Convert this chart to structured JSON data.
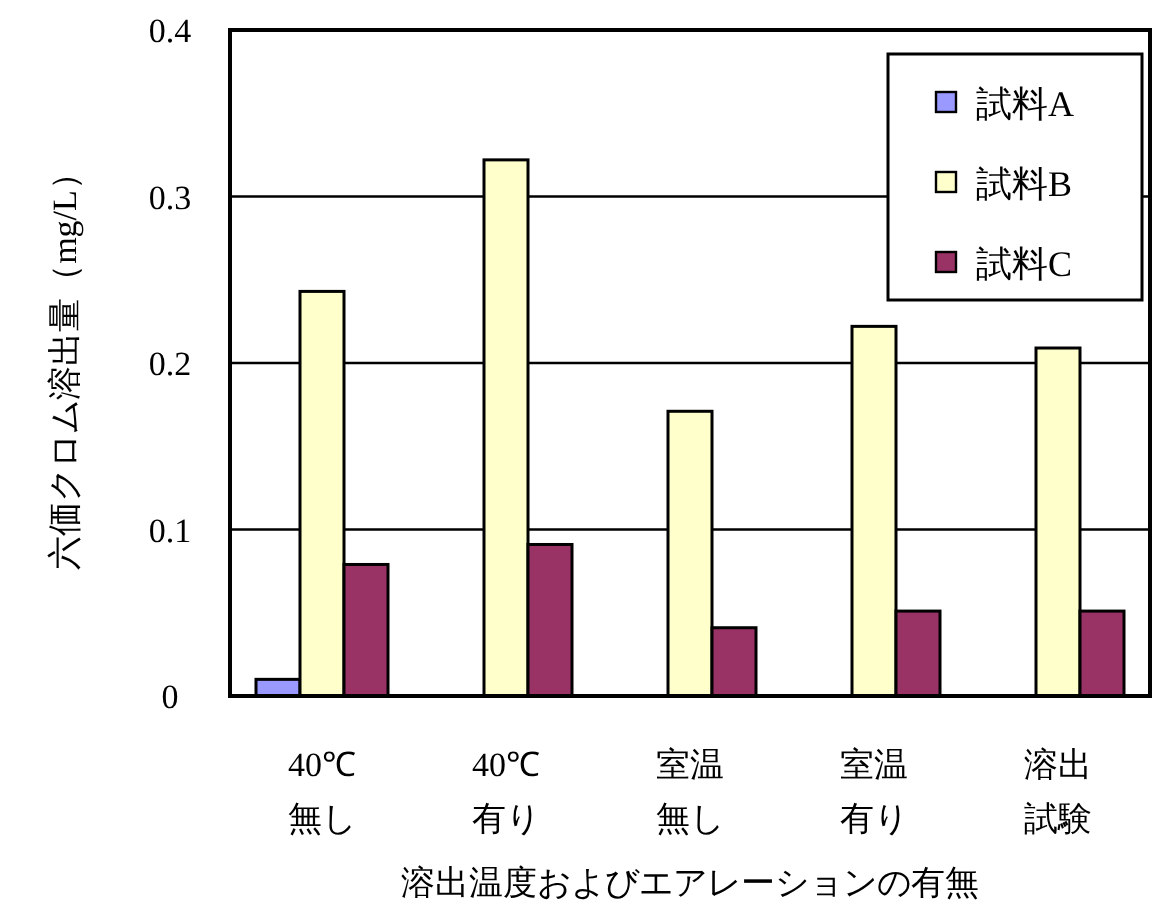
{
  "chart_data": {
    "type": "bar",
    "xlabel": "溶出温度およびエアレーションの有無",
    "ylabel": "六価クロム溶出量（mg/L）",
    "categories": [
      "40℃無し",
      "40℃有り",
      "室温無し",
      "室温有り",
      "溶出試験"
    ],
    "series": [
      {
        "name": "試料A",
        "color": "#9999ff",
        "values": [
          0.01,
          0,
          0,
          0,
          0
        ]
      },
      {
        "name": "試料B",
        "color": "#ffffcc",
        "values": [
          0.243,
          0.322,
          0.171,
          0.222,
          0.209
        ]
      },
      {
        "name": "試料C",
        "color": "#993366",
        "values": [
          0.079,
          0.091,
          0.041,
          0.051,
          0.051
        ]
      }
    ],
    "ylim": [
      0,
      0.4
    ],
    "yticks": [
      0,
      0.1,
      0.2,
      0.3,
      0.4
    ],
    "grid": "y",
    "legend": "top right"
  }
}
